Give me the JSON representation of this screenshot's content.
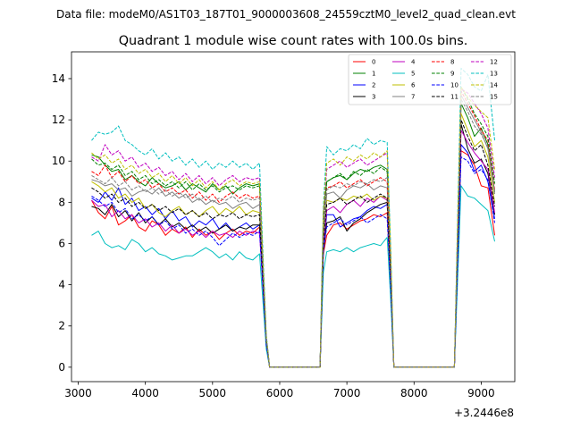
{
  "chart_data": {
    "type": "line",
    "suptitle": "Data file: modeM0/AS1T03_187T01_9000003608_24559cztM0_level2_quad_clean.evt",
    "title": "Quadrant 1 module wise count rates with 100.0s bins.",
    "xlabel": "",
    "ylabel": "",
    "x_offset_label": "+3.2446e8",
    "xlim": [
      2900,
      9500
    ],
    "ylim": [
      -0.7,
      15.3
    ],
    "x_ticks": [
      3000,
      4000,
      5000,
      6000,
      7000,
      8000,
      9000
    ],
    "y_ticks": [
      0,
      2,
      4,
      6,
      8,
      10,
      12,
      14
    ],
    "grid": false,
    "legend_position": "top-right",
    "legend_columns": 4,
    "x": [
      3200,
      3300,
      3400,
      3500,
      3600,
      3700,
      3800,
      3900,
      4000,
      4100,
      4200,
      4300,
      4400,
      4500,
      4600,
      4700,
      4800,
      4900,
      5000,
      5100,
      5200,
      5300,
      5400,
      5500,
      5600,
      5700,
      5750,
      5800,
      5850,
      5900,
      6000,
      6100,
      6200,
      6300,
      6400,
      6500,
      6600,
      6650,
      6700,
      6800,
      6900,
      7000,
      7100,
      7200,
      7300,
      7400,
      7500,
      7600,
      7650,
      7700,
      7800,
      7900,
      8000,
      8100,
      8200,
      8300,
      8400,
      8500,
      8600,
      8650,
      8700,
      8800,
      8900,
      9000,
      9100,
      9200
    ],
    "series": [
      {
        "name": "0",
        "color": "#ff0000",
        "dash": false,
        "values": [
          8.1,
          7.5,
          7.2,
          7.8,
          6.9,
          7.1,
          7.4,
          6.8,
          6.6,
          7.1,
          6.9,
          6.4,
          6.7,
          6.5,
          6.8,
          6.3,
          6.7,
          6.4,
          6.6,
          6.2,
          6.5,
          6.7,
          6.4,
          6.6,
          6.5,
          6.8,
          4.0,
          1.2,
          0.0,
          0.0,
          0.0,
          0.0,
          0.0,
          0.0,
          0.0,
          0.0,
          0.0,
          5.5,
          6.4,
          6.9,
          7.0,
          6.7,
          6.9,
          7.1,
          7.2,
          7.4,
          7.3,
          7.5,
          4.0,
          0.0,
          0.0,
          0.0,
          0.0,
          0.0,
          0.0,
          0.0,
          0.0,
          0.0,
          0.0,
          5.0,
          10.5,
          10.3,
          9.8,
          8.8,
          8.7,
          6.4
        ]
      },
      {
        "name": "1",
        "color": "#008000",
        "dash": false,
        "values": [
          10.3,
          10.2,
          9.8,
          9.5,
          9.6,
          9.1,
          9.3,
          9.0,
          8.8,
          9.2,
          8.9,
          8.7,
          8.8,
          9.0,
          8.6,
          8.9,
          8.7,
          8.5,
          8.9,
          8.6,
          8.8,
          8.4,
          8.7,
          8.9,
          8.8,
          8.9,
          5.0,
          1.4,
          0.0,
          0.0,
          0.0,
          0.0,
          0.0,
          0.0,
          0.0,
          0.0,
          0.0,
          7.5,
          9.0,
          9.2,
          9.3,
          9.1,
          9.4,
          9.6,
          9.5,
          9.7,
          9.8,
          9.6,
          5.0,
          0.0,
          0.0,
          0.0,
          0.0,
          0.0,
          0.0,
          0.0,
          0.0,
          0.0,
          0.0,
          6.0,
          12.8,
          12.1,
          11.2,
          11.6,
          10.8,
          8.5
        ]
      },
      {
        "name": "2",
        "color": "#0000ff",
        "dash": false,
        "values": [
          8.2,
          8.0,
          8.5,
          8.1,
          8.7,
          7.9,
          8.2,
          7.6,
          7.8,
          7.4,
          7.7,
          7.2,
          7.6,
          7.1,
          7.3,
          6.8,
          7.1,
          6.9,
          7.2,
          6.7,
          7.0,
          6.6,
          6.8,
          7.0,
          6.7,
          6.9,
          4.2,
          1.2,
          0.0,
          0.0,
          0.0,
          0.0,
          0.0,
          0.0,
          0.0,
          0.0,
          0.0,
          5.8,
          7.4,
          7.4,
          6.8,
          7.0,
          7.2,
          7.3,
          7.6,
          7.8,
          7.7,
          7.9,
          4.2,
          0.0,
          0.0,
          0.0,
          0.0,
          0.0,
          0.0,
          0.0,
          0.0,
          0.0,
          0.0,
          5.2,
          10.8,
          10.4,
          9.5,
          9.8,
          9.0,
          7.2
        ]
      },
      {
        "name": "3",
        "color": "#000000",
        "dash": false,
        "values": [
          7.8,
          7.7,
          7.4,
          7.9,
          7.3,
          7.6,
          7.1,
          7.5,
          7.0,
          7.3,
          6.9,
          7.2,
          6.8,
          7.0,
          6.7,
          6.9,
          6.6,
          6.8,
          6.5,
          6.7,
          6.9,
          6.6,
          6.8,
          6.7,
          6.9,
          6.9,
          4.1,
          1.3,
          0.0,
          0.0,
          0.0,
          0.0,
          0.0,
          0.0,
          0.0,
          0.0,
          0.0,
          5.6,
          7.0,
          7.1,
          7.3,
          6.6,
          7.0,
          7.2,
          7.5,
          7.7,
          7.9,
          8.0,
          4.4,
          0.0,
          0.0,
          0.0,
          0.0,
          0.0,
          0.0,
          0.0,
          0.0,
          0.0,
          0.0,
          5.5,
          11.8,
          10.6,
          9.9,
          10.1,
          9.4,
          7.4
        ]
      },
      {
        "name": "4",
        "color": "#bf00bf",
        "dash": false,
        "values": [
          8.1,
          7.8,
          7.9,
          7.3,
          7.6,
          7.2,
          7.4,
          7.0,
          7.2,
          6.8,
          7.0,
          6.6,
          6.9,
          6.5,
          6.7,
          6.4,
          6.6,
          6.3,
          6.6,
          6.4,
          6.5,
          6.3,
          6.6,
          6.4,
          6.6,
          6.5,
          3.9,
          1.1,
          0.0,
          0.0,
          0.0,
          0.0,
          0.0,
          0.0,
          0.0,
          0.0,
          0.0,
          5.9,
          7.6,
          7.8,
          7.5,
          7.9,
          8.1,
          7.8,
          8.2,
          8.0,
          8.3,
          8.1,
          4.3,
          0.0,
          0.0,
          0.0,
          0.0,
          0.0,
          0.0,
          0.0,
          0.0,
          0.0,
          0.0,
          5.6,
          11.5,
          10.9,
          10.4,
          10.0,
          9.6,
          7.5
        ]
      },
      {
        "name": "5",
        "color": "#00bfbf",
        "dash": false,
        "values": [
          6.4,
          6.6,
          6.0,
          5.8,
          5.9,
          5.7,
          6.2,
          6.0,
          5.6,
          5.8,
          5.5,
          5.4,
          5.2,
          5.3,
          5.4,
          5.4,
          5.6,
          5.8,
          5.6,
          5.3,
          5.5,
          5.2,
          5.6,
          5.3,
          5.2,
          5.5,
          3.2,
          0.9,
          0.0,
          0.0,
          0.0,
          0.0,
          0.0,
          0.0,
          0.0,
          0.0,
          0.0,
          4.6,
          5.6,
          5.7,
          5.6,
          5.8,
          5.6,
          5.8,
          5.9,
          6.0,
          5.9,
          6.3,
          3.4,
          0.0,
          0.0,
          0.0,
          0.0,
          0.0,
          0.0,
          0.0,
          0.0,
          0.0,
          0.0,
          4.3,
          8.8,
          8.3,
          8.2,
          7.9,
          7.6,
          6.1
        ]
      },
      {
        "name": "6",
        "color": "#bfbf00",
        "dash": false,
        "values": [
          9.0,
          8.8,
          8.5,
          8.7,
          8.2,
          8.4,
          8.0,
          8.2,
          7.7,
          7.9,
          7.5,
          7.3,
          7.6,
          7.8,
          7.4,
          7.6,
          7.3,
          7.6,
          7.8,
          7.4,
          7.7,
          7.5,
          7.8,
          7.4,
          7.6,
          7.5,
          4.4,
          1.3,
          0.0,
          0.0,
          0.0,
          0.0,
          0.0,
          0.0,
          0.0,
          0.0,
          0.0,
          6.2,
          8.1,
          8.0,
          8.2,
          8.1,
          8.3,
          8.2,
          8.4,
          8.1,
          8.3,
          8.2,
          4.5,
          0.0,
          0.0,
          0.0,
          0.0,
          0.0,
          0.0,
          0.0,
          0.0,
          0.0,
          0.0,
          6.0,
          12.3,
          11.5,
          10.7,
          11.0,
          10.2,
          8.0
        ]
      },
      {
        "name": "7",
        "color": "#808080",
        "dash": false,
        "values": [
          9.1,
          9.0,
          8.8,
          8.9,
          8.6,
          8.7,
          8.3,
          8.5,
          8.6,
          8.4,
          8.7,
          8.3,
          8.5,
          8.2,
          8.4,
          8.0,
          8.2,
          7.9,
          8.1,
          7.9,
          8.0,
          7.7,
          7.9,
          8.0,
          7.7,
          7.9,
          4.6,
          1.4,
          0.0,
          0.0,
          0.0,
          0.0,
          0.0,
          0.0,
          0.0,
          0.0,
          0.0,
          6.4,
          8.4,
          8.5,
          8.2,
          8.6,
          8.8,
          8.7,
          8.9,
          8.6,
          8.8,
          8.7,
          4.8,
          0.0,
          0.0,
          0.0,
          0.0,
          0.0,
          0.0,
          0.0,
          0.0,
          0.0,
          0.0,
          6.3,
          13.2,
          12.6,
          12.0,
          11.4,
          10.6,
          8.4
        ]
      },
      {
        "name": "8",
        "color": "#ff0000",
        "dash": true,
        "values": [
          9.5,
          9.3,
          9.8,
          9.2,
          9.5,
          9.0,
          9.3,
          8.9,
          9.1,
          8.7,
          8.9,
          8.5,
          8.7,
          8.4,
          8.6,
          8.2,
          8.5,
          8.1,
          8.4,
          8.0,
          8.3,
          8.5,
          8.2,
          8.4,
          8.2,
          8.3,
          4.8,
          1.4,
          0.0,
          0.0,
          0.0,
          0.0,
          0.0,
          0.0,
          0.0,
          0.0,
          0.0,
          6.6,
          8.7,
          8.8,
          9.0,
          8.7,
          8.9,
          9.1,
          8.8,
          9.0,
          9.2,
          9.0,
          5.0,
          0.0,
          0.0,
          0.0,
          0.0,
          0.0,
          0.0,
          0.0,
          0.0,
          0.0,
          0.0,
          6.5,
          13.4,
          12.8,
          12.2,
          11.5,
          11.0,
          8.6
        ]
      },
      {
        "name": "9",
        "color": "#008000",
        "dash": true,
        "values": [
          10.1,
          9.8,
          9.9,
          9.6,
          9.8,
          9.3,
          9.5,
          9.1,
          9.3,
          8.9,
          9.1,
          8.8,
          9.0,
          8.7,
          9.0,
          8.6,
          8.9,
          8.6,
          8.8,
          8.5,
          8.7,
          8.8,
          8.6,
          8.8,
          8.7,
          8.8,
          5.1,
          1.5,
          0.0,
          0.0,
          0.0,
          0.0,
          0.0,
          0.0,
          0.0,
          0.0,
          0.0,
          7.0,
          9.0,
          9.2,
          9.4,
          9.1,
          9.5,
          9.3,
          9.6,
          9.4,
          9.7,
          9.5,
          5.2,
          0.0,
          0.0,
          0.0,
          0.0,
          0.0,
          0.0,
          0.0,
          0.0,
          0.0,
          0.0,
          6.8,
          13.6,
          13.0,
          12.3,
          11.8,
          11.2,
          8.9
        ]
      },
      {
        "name": "10",
        "color": "#0000ff",
        "dash": true,
        "values": [
          8.3,
          8.1,
          7.8,
          8.0,
          7.5,
          7.7,
          7.2,
          7.4,
          7.1,
          7.3,
          6.9,
          7.1,
          6.7,
          6.9,
          6.5,
          6.7,
          6.4,
          6.6,
          6.3,
          5.9,
          6.2,
          6.5,
          6.3,
          6.5,
          6.4,
          6.6,
          3.9,
          1.1,
          0.0,
          0.0,
          0.0,
          0.0,
          0.0,
          0.0,
          0.0,
          0.0,
          0.0,
          5.7,
          6.8,
          7.0,
          7.2,
          6.9,
          7.1,
          7.3,
          7.0,
          7.2,
          7.4,
          7.2,
          4.0,
          0.0,
          0.0,
          0.0,
          0.0,
          0.0,
          0.0,
          0.0,
          0.0,
          0.0,
          0.0,
          5.1,
          10.2,
          10.0,
          9.4,
          9.6,
          9.1,
          7.0
        ]
      },
      {
        "name": "11",
        "color": "#000000",
        "dash": true,
        "values": [
          8.7,
          8.5,
          8.2,
          8.4,
          8.0,
          8.2,
          7.8,
          8.0,
          7.7,
          7.9,
          7.6,
          7.8,
          7.5,
          7.7,
          7.4,
          7.6,
          7.3,
          7.5,
          7.2,
          7.4,
          7.3,
          7.5,
          7.2,
          7.4,
          7.3,
          7.4,
          4.3,
          1.3,
          0.0,
          0.0,
          0.0,
          0.0,
          0.0,
          0.0,
          0.0,
          0.0,
          0.0,
          6.1,
          7.9,
          8.0,
          8.2,
          7.9,
          8.1,
          8.3,
          8.0,
          8.2,
          8.4,
          8.2,
          4.6,
          0.0,
          0.0,
          0.0,
          0.0,
          0.0,
          0.0,
          0.0,
          0.0,
          0.0,
          0.0,
          5.9,
          12.0,
          11.2,
          10.5,
          10.8,
          9.8,
          7.8
        ]
      },
      {
        "name": "12",
        "color": "#bf00bf",
        "dash": true,
        "values": [
          10.2,
          10.0,
          10.8,
          10.3,
          10.5,
          10.0,
          10.2,
          9.7,
          9.9,
          9.5,
          9.7,
          9.3,
          9.5,
          9.1,
          9.4,
          9.0,
          9.3,
          8.9,
          9.2,
          8.8,
          9.1,
          9.3,
          9.0,
          9.2,
          9.1,
          9.2,
          5.3,
          1.5,
          0.0,
          0.0,
          0.0,
          0.0,
          0.0,
          0.0,
          0.0,
          0.0,
          0.0,
          7.3,
          9.6,
          9.8,
          10.0,
          9.7,
          9.9,
          10.1,
          9.8,
          10.0,
          10.2,
          10.4,
          5.7,
          0.0,
          0.0,
          0.0,
          0.0,
          0.0,
          0.0,
          0.0,
          0.0,
          0.0,
          0.0,
          6.9,
          13.5,
          13.3,
          12.8,
          12.3,
          11.6,
          9.2
        ]
      },
      {
        "name": "13",
        "color": "#00bfbf",
        "dash": true,
        "values": [
          11.0,
          11.4,
          11.3,
          11.4,
          11.7,
          11.0,
          10.8,
          10.5,
          10.3,
          10.6,
          10.1,
          10.4,
          10.0,
          10.2,
          9.8,
          10.1,
          9.7,
          10.0,
          9.6,
          9.9,
          9.7,
          10.0,
          9.7,
          9.9,
          9.6,
          9.9,
          5.6,
          1.6,
          0.0,
          0.0,
          0.0,
          0.0,
          0.0,
          0.0,
          0.0,
          0.0,
          0.0,
          7.8,
          10.7,
          10.3,
          10.6,
          10.5,
          10.8,
          10.6,
          11.1,
          10.8,
          11.0,
          10.9,
          6.0,
          0.0,
          0.0,
          0.0,
          0.0,
          0.0,
          0.0,
          0.0,
          0.0,
          0.0,
          0.0,
          7.4,
          14.5,
          14.2,
          13.6,
          13.4,
          14.2,
          11.0
        ]
      },
      {
        "name": "14",
        "color": "#bfbf00",
        "dash": true,
        "values": [
          10.4,
          10.1,
          10.3,
          9.9,
          10.1,
          9.6,
          9.8,
          9.4,
          9.6,
          9.2,
          9.4,
          9.0,
          9.3,
          8.9,
          9.2,
          8.8,
          9.1,
          8.7,
          9.0,
          8.6,
          8.9,
          9.1,
          8.8,
          9.0,
          8.9,
          9.0,
          5.2,
          1.5,
          0.0,
          0.0,
          0.0,
          0.0,
          0.0,
          0.0,
          0.0,
          0.0,
          0.0,
          7.5,
          9.9,
          10.1,
          9.8,
          10.2,
          10.0,
          10.3,
          10.1,
          10.4,
          10.2,
          10.5,
          5.8,
          0.0,
          0.0,
          0.0,
          0.0,
          0.0,
          0.0,
          0.0,
          0.0,
          0.0,
          0.0,
          7.1,
          13.6,
          13.1,
          12.7,
          12.4,
          12.1,
          9.6
        ]
      },
      {
        "name": "15",
        "color": "#808080",
        "dash": true,
        "values": [
          9.3,
          9.1,
          8.9,
          9.2,
          8.8,
          9.0,
          8.6,
          8.8,
          8.5,
          8.7,
          8.4,
          8.6,
          8.3,
          8.5,
          8.2,
          8.4,
          8.1,
          8.3,
          8.0,
          8.2,
          8.1,
          8.3,
          8.0,
          8.2,
          8.1,
          8.2,
          4.7,
          1.4,
          0.0,
          0.0,
          0.0,
          0.0,
          0.0,
          0.0,
          0.0,
          0.0,
          0.0,
          6.5,
          8.6,
          8.8,
          8.7,
          8.9,
          8.8,
          9.0,
          8.9,
          9.1,
          9.0,
          9.2,
          5.1,
          0.0,
          0.0,
          0.0,
          0.0,
          0.0,
          0.0,
          0.0,
          0.0,
          0.0,
          0.0,
          6.4,
          13.0,
          12.4,
          11.7,
          11.3,
          10.7,
          8.5
        ]
      }
    ]
  }
}
